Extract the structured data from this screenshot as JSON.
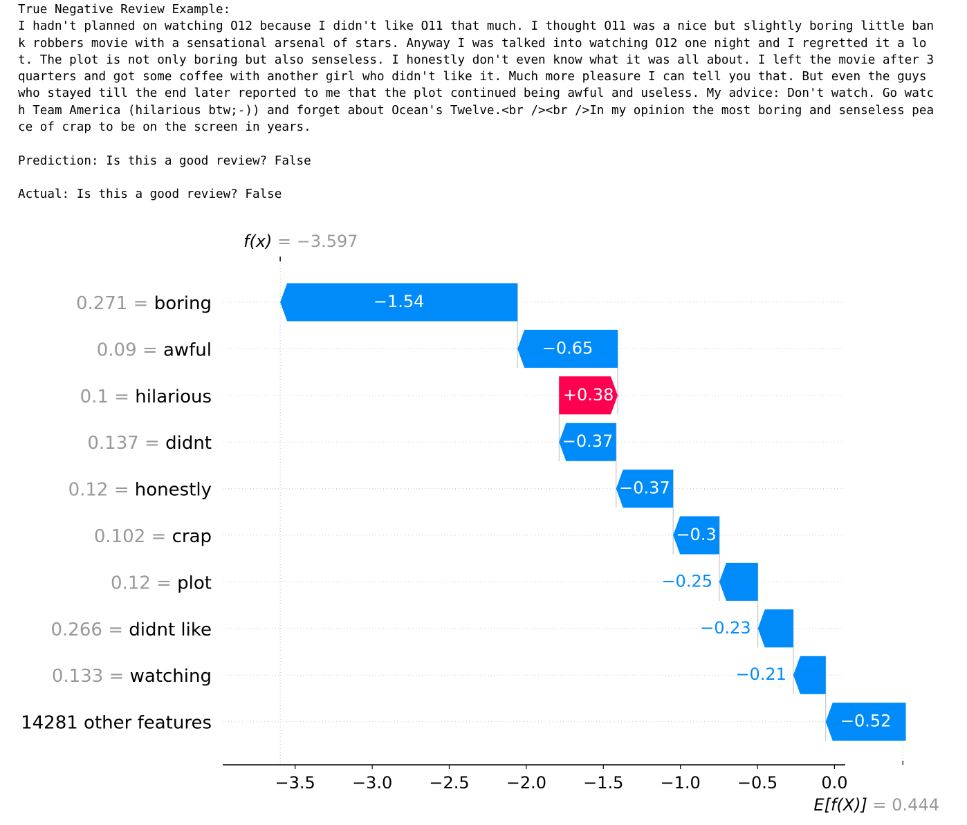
{
  "review": {
    "heading": "True Negative Review Example:",
    "lines": [
      "I hadn't planned on watching O12 because I didn't like O11 that much. I thought O11 was a nice but slightly boring little ban",
      "k robbers movie with a sensational arsenal of stars. Anyway I was talked into watching O12 one night and I regretted it a lo",
      "t. The plot is not only boring but also senseless. I honestly don't even know what it was all about. I left the movie after 3",
      "quarters and got some coffee with another girl who didn't like it. Much more pleasure I can tell you that. But even the guys",
      "who stayed till the end later reported to me that the plot continued being awful and useless. My advice: Don't watch. Go watc",
      "h Team America (hilarious btw;-)) and forget about Ocean's Twelve.<br /><br />In my opinion the most boring and senseless pea",
      "ce of crap to be on the screen in years."
    ],
    "prediction": "Prediction: Is this a good review? False",
    "actual": "Actual: Is this a good review? False"
  },
  "chart_data": {
    "type": "waterfall",
    "fx_label": "f(x)",
    "fx_value": "= −3.597",
    "base_label": "E[f(X)]",
    "base_value": "= 0.444",
    "base": 0.444,
    "output": -3.597,
    "xlim": [
      -3.97,
      0.07
    ],
    "xticks": [
      -3.5,
      -3.0,
      -2.5,
      -2.0,
      -1.5,
      -1.0,
      -0.5,
      0.0
    ],
    "xtick_labels": [
      "−3.5",
      "−3.0",
      "−2.5",
      "−2.0",
      "−1.5",
      "−1.0",
      "−0.5",
      "0.0"
    ],
    "features": [
      {
        "value": "0.271",
        "name": "boring",
        "contribution": -1.54,
        "label": "−1.54"
      },
      {
        "value": "0.09",
        "name": "awful",
        "contribution": -0.65,
        "label": "−0.65"
      },
      {
        "value": "0.1",
        "name": "hilarious",
        "contribution": 0.38,
        "label": "+0.38"
      },
      {
        "value": "0.137",
        "name": "didnt",
        "contribution": -0.37,
        "label": "−0.37"
      },
      {
        "value": "0.12",
        "name": "honestly",
        "contribution": -0.37,
        "label": "−0.37"
      },
      {
        "value": "0.102",
        "name": "crap",
        "contribution": -0.3,
        "label": "−0.3"
      },
      {
        "value": "0.12",
        "name": "plot",
        "contribution": -0.25,
        "label": "−0.25"
      },
      {
        "value": "0.266",
        "name": "didnt like",
        "contribution": -0.23,
        "label": "−0.23"
      },
      {
        "value": "0.133",
        "name": "watching",
        "contribution": -0.21,
        "label": "−0.21"
      },
      {
        "value": "",
        "name": "14281 other features",
        "contribution": -0.52,
        "label": "−0.52"
      }
    ],
    "colors": {
      "negative": "#008bfb",
      "positive": "#ff0051",
      "value_text": "#999999",
      "axis": "#000000"
    }
  }
}
